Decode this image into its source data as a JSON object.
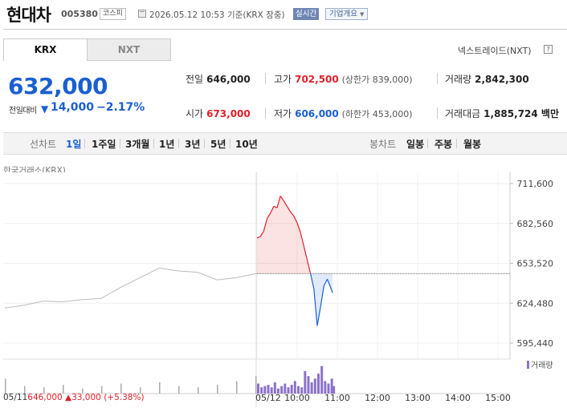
{
  "header": {
    "stock_name": "현대차",
    "stock_code": "005380",
    "market": "코스피",
    "datetime": "2026.05.12 10:53 기준(KRX 장중)",
    "realtime": "실시간",
    "company_info": "기업개요"
  },
  "tabs": [
    {
      "label": "KRX"
    },
    {
      "label": "NXT"
    }
  ],
  "nxt_link": "넥스트레이드(NXT)",
  "help_icon": "?",
  "price": {
    "current": "632,000",
    "change_label": "전일대비",
    "change": "14,000",
    "change_pct": "−2.17%",
    "direction_icon": "▼"
  },
  "stats": {
    "prev_close_label": "전일",
    "prev_close": "646,000",
    "high_label": "고가",
    "high": "702,500",
    "upper_limit": "(상한가 839,000)",
    "volume_label": "거래량",
    "volume": "2,842,300",
    "open_label": "시가",
    "open": "673,000",
    "low_label": "저가",
    "low": "606,000",
    "lower_limit": "(하한가 453,000)",
    "amount_label": "거래대금",
    "amount": "1,885,724 백만"
  },
  "period_bar": {
    "line_chart": "선차트",
    "periods": [
      "1일",
      "1주일",
      "3개월",
      "1년",
      "3년",
      "5년",
      "10년"
    ],
    "active_period": "1일",
    "candle_chart": "봉차트",
    "candle_periods": [
      "일봉",
      "주봉",
      "월봉"
    ]
  },
  "source_label": "한국거래소(KRX)",
  "volume_legend": "거래량",
  "prev_day_info": {
    "date": "05/11",
    "price": "646,000",
    "change_icon": "▲",
    "change": "33,000",
    "change_pct": "(+5.38%)"
  },
  "colors": {
    "up": "#e0202a",
    "down": "#1a5fd2",
    "volume": "#8c72c8",
    "prev_day_line": "#bbbbbb"
  },
  "chart_data": {
    "type": "line",
    "ylim": [
      595440,
      711600
    ],
    "y_ticks": [
      "711,600",
      "682,560",
      "653,520",
      "624,480",
      "595,440"
    ],
    "x_ticks": [
      "05/12",
      "10:00",
      "11:00",
      "12:00",
      "13:00",
      "14:00",
      "15:00"
    ],
    "reference_price": 646000,
    "series": [
      {
        "x": [
          "05/11 09:00",
          "05/11 09:30",
          "05/11 10:00",
          "05/11 10:30",
          "05/11 11:00",
          "05/11 11:30",
          "05/11 12:00",
          "05/11 12:30",
          "05/11 13:00",
          "05/11 13:30",
          "05/11 14:00",
          "05/11 14:30",
          "05/11 15:00",
          "05/11 15:30"
        ],
        "values": [
          621000,
          623000,
          626000,
          625500,
          627000,
          628000,
          636000,
          643000,
          650000,
          648000,
          647000,
          641500,
          643000,
          646000
        ]
      },
      {
        "x": [
          "09:00",
          "09:05",
          "09:10",
          "09:15",
          "09:20",
          "09:25",
          "09:30",
          "09:35",
          "09:40",
          "09:45",
          "09:50",
          "09:55",
          "10:00",
          "10:05",
          "10:10",
          "10:15",
          "10:20",
          "10:25",
          "10:30",
          "10:35",
          "10:40",
          "10:45",
          "10:50",
          "10:53"
        ],
        "values": [
          672000,
          673000,
          677000,
          686000,
          690000,
          695000,
          694000,
          702500,
          699000,
          695000,
          691000,
          688000,
          683000,
          676000,
          666000,
          656000,
          646000,
          635000,
          608000,
          622000,
          637000,
          642000,
          636000,
          632000
        ]
      }
    ],
    "volume": [
      8,
      5,
      6,
      7,
      5,
      9,
      4,
      6,
      8,
      5,
      7,
      10,
      6,
      5,
      18,
      14,
      9,
      12,
      16,
      22,
      10,
      8,
      12,
      6
    ]
  }
}
